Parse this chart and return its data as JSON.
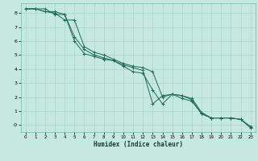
{
  "xlabel": "Humidex (Indice chaleur)",
  "background_color": "#c5e8e0",
  "grid_color": "#b0d8ce",
  "line_color": "#1e6b5a",
  "xlim": [
    -0.5,
    23.5
  ],
  "ylim": [
    -0.5,
    8.7
  ],
  "x_ticks": [
    0,
    1,
    2,
    3,
    4,
    5,
    6,
    7,
    8,
    9,
    10,
    11,
    12,
    13,
    14,
    15,
    16,
    17,
    18,
    19,
    20,
    21,
    22,
    23
  ],
  "y_ticks": [
    0,
    1,
    2,
    3,
    4,
    5,
    6,
    7,
    8
  ],
  "y_tick_labels": [
    "-0",
    "1",
    "2",
    "3",
    "4",
    "5",
    "6",
    "7",
    "8"
  ],
  "series": [
    [
      8.3,
      8.3,
      8.1,
      8.1,
      7.9,
      6.0,
      5.1,
      4.9,
      4.7,
      4.6,
      4.2,
      3.8,
      3.7,
      2.5,
      1.5,
      2.2,
      2.1,
      1.9,
      0.9,
      0.5,
      0.5,
      0.5,
      0.4,
      -0.1
    ],
    [
      8.3,
      8.3,
      8.1,
      8.0,
      7.5,
      7.5,
      5.6,
      5.2,
      5.0,
      4.7,
      4.4,
      4.2,
      4.1,
      3.8,
      2.0,
      2.2,
      2.1,
      1.8,
      0.8,
      0.5,
      0.5,
      0.5,
      0.4,
      -0.15
    ],
    [
      8.3,
      8.3,
      8.3,
      7.9,
      7.9,
      6.3,
      5.4,
      5.0,
      4.8,
      4.6,
      4.3,
      4.1,
      3.9,
      1.5,
      2.1,
      2.2,
      1.9,
      1.7,
      0.8,
      0.5,
      0.5,
      0.5,
      0.4,
      -0.2
    ]
  ]
}
